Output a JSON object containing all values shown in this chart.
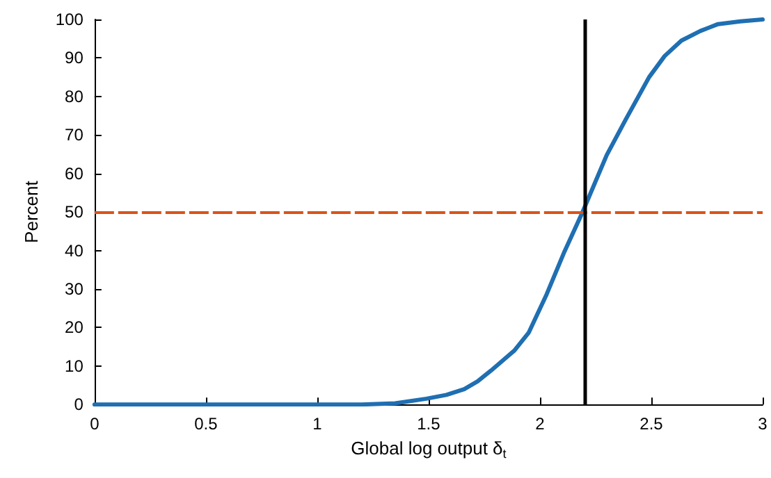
{
  "chart_data": {
    "type": "line",
    "xlabel": "Global log output δ$_{t}$",
    "ylabel": "Percent",
    "series": [
      {
        "color": "#1f6fb2",
        "x": [
          0,
          0.5,
          1,
          1.2,
          1.35,
          1.49,
          1.58,
          1.66,
          1.72,
          1.78,
          1.885,
          1.95,
          2.03,
          2.11,
          2.19,
          2.3,
          2.385,
          2.49,
          2.56,
          2.635,
          2.72,
          2.8,
          2.9,
          3
        ],
        "values": [
          0,
          0,
          0,
          0,
          0.3,
          1.5,
          2.5,
          4,
          6,
          8.8,
          14,
          18.7,
          28.6,
          39.7,
          49.8,
          64.8,
          74,
          85,
          90.5,
          94.5,
          97,
          98.8,
          99.5,
          100
        ]
      }
    ],
    "xlim": [
      0,
      3
    ],
    "xticks": [
      0,
      0.5,
      1,
      1.5,
      2,
      2.5,
      3
    ],
    "ylim": [
      0,
      100
    ],
    "yticks": [
      0,
      10,
      20,
      30,
      40,
      50,
      60,
      70,
      80,
      90,
      100
    ],
    "ref_lines": [
      {
        "axis": "y",
        "value": 50,
        "color": "#d95319",
        "line_style": "dashed"
      },
      {
        "axis": "x",
        "value": 2.2,
        "color": "#000000",
        "line_style": "solid"
      }
    ],
    "marker": "none",
    "line_style": "solid"
  }
}
